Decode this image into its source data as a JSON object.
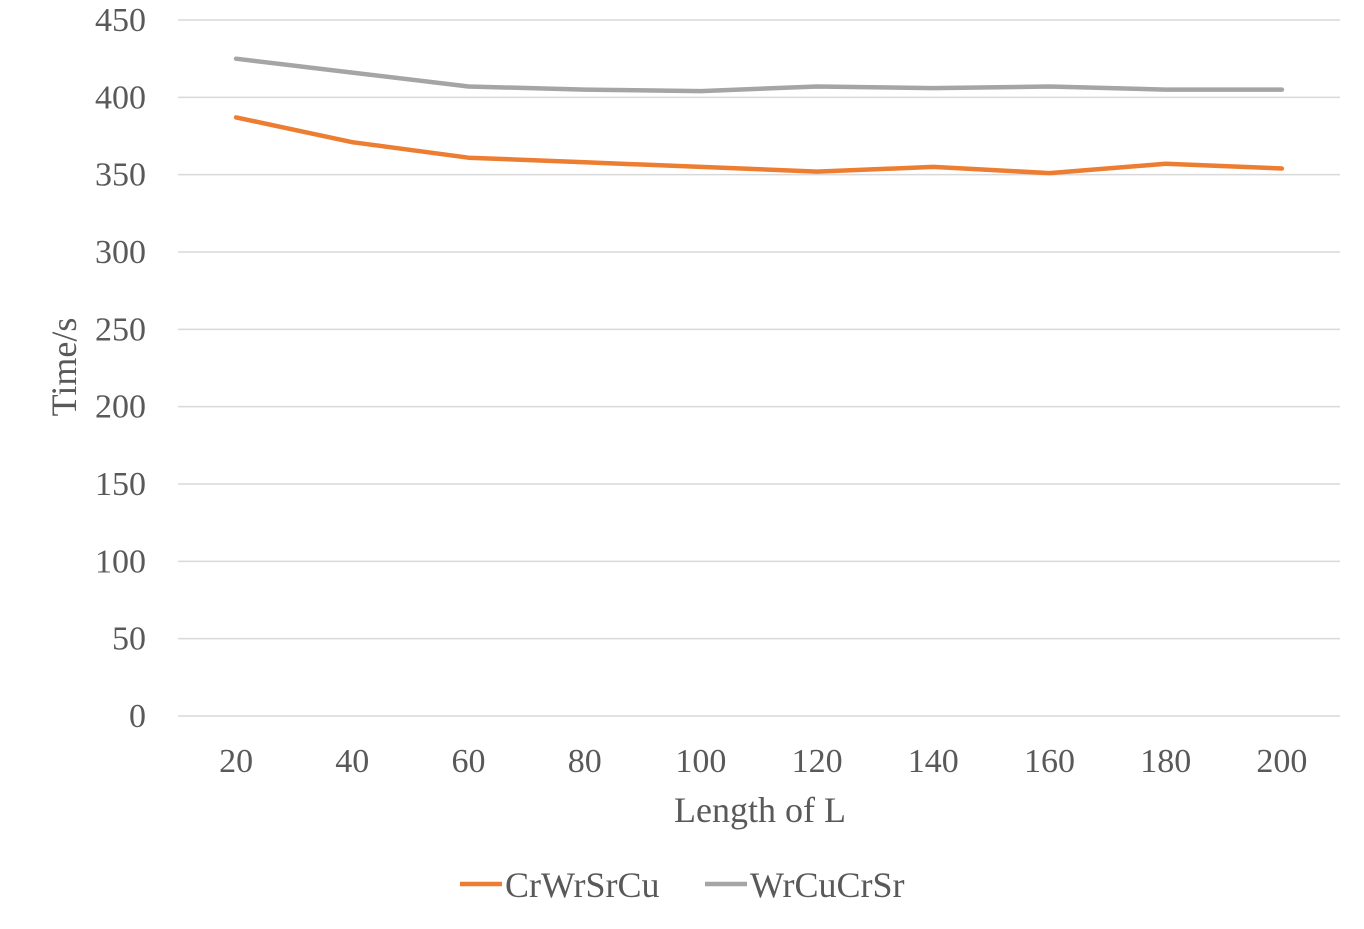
{
  "chart_data": {
    "type": "line",
    "title": "",
    "xlabel": "Length of L",
    "ylabel": "Time/s",
    "x": [
      "20",
      "40",
      "60",
      "80",
      "100",
      "120",
      "140",
      "160",
      "180",
      "200"
    ],
    "ylim": [
      0,
      450
    ],
    "yticks": [
      "0",
      "50",
      "100",
      "150",
      "200",
      "250",
      "300",
      "350",
      "400",
      "450"
    ],
    "grid": true,
    "legend_position": "bottom",
    "series": [
      {
        "name": "CrWrSrCu",
        "color": "#ED7D31",
        "values": [
          387,
          371,
          361,
          358,
          355,
          352,
          355,
          351,
          357,
          354
        ]
      },
      {
        "name": "WrCuCrSr",
        "color": "#A5A5A5",
        "values": [
          425,
          416,
          407,
          405,
          404,
          407,
          406,
          407,
          405,
          405
        ]
      }
    ]
  }
}
